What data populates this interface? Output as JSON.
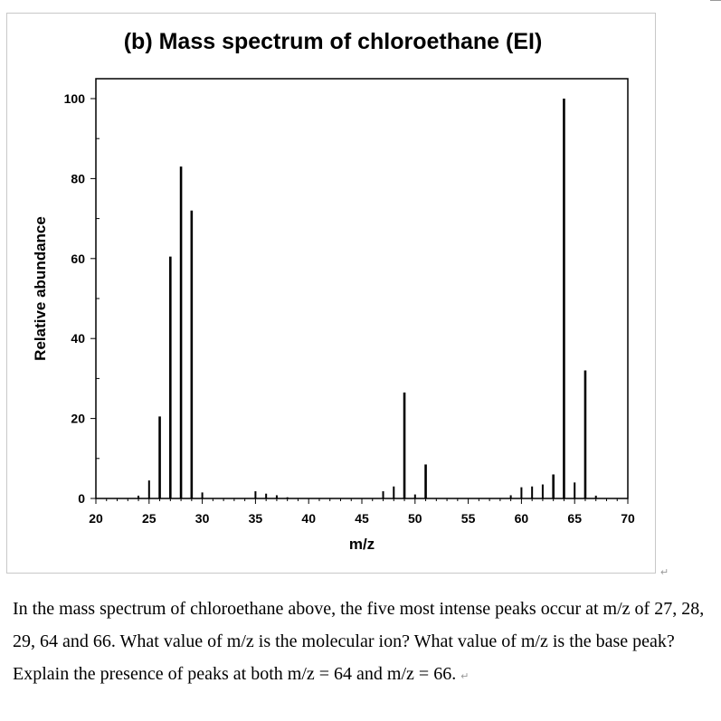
{
  "chart_data": {
    "type": "bar",
    "title": "(b) Mass spectrum of chloroethane (EI)",
    "xlabel": "m/z",
    "ylabel": "Relative abundance",
    "xlim": [
      20,
      70
    ],
    "ylim": [
      0,
      105
    ],
    "xticks": [
      20,
      25,
      30,
      35,
      40,
      45,
      50,
      55,
      60,
      65,
      70
    ],
    "yticks": [
      0,
      20,
      40,
      60,
      80,
      100
    ],
    "grid": false,
    "legend": "none",
    "peaks": [
      {
        "x": 24,
        "y": 0.7
      },
      {
        "x": 25,
        "y": 4.5
      },
      {
        "x": 26,
        "y": 20.5
      },
      {
        "x": 27,
        "y": 60.5
      },
      {
        "x": 28,
        "y": 83
      },
      {
        "x": 29,
        "y": 72
      },
      {
        "x": 30,
        "y": 1.5
      },
      {
        "x": 35,
        "y": 1.8
      },
      {
        "x": 36,
        "y": 1.2
      },
      {
        "x": 37,
        "y": 0.8
      },
      {
        "x": 38,
        "y": 0.3
      },
      {
        "x": 47,
        "y": 1.8
      },
      {
        "x": 48,
        "y": 3.0
      },
      {
        "x": 49,
        "y": 26.5
      },
      {
        "x": 50,
        "y": 1.0
      },
      {
        "x": 51,
        "y": 8.5
      },
      {
        "x": 59,
        "y": 0.8
      },
      {
        "x": 60,
        "y": 2.8
      },
      {
        "x": 61,
        "y": 3.0
      },
      {
        "x": 62,
        "y": 3.5
      },
      {
        "x": 63,
        "y": 6.0
      },
      {
        "x": 64,
        "y": 100
      },
      {
        "x": 65,
        "y": 4.0
      },
      {
        "x": 66,
        "y": 32
      },
      {
        "x": 67,
        "y": 0.7
      }
    ]
  },
  "question": {
    "text": "In the mass spectrum of chloroethane above, the five most intense peaks occur at m/z of 27, 28, 29, 64 and 66. What value of m/z is the molecular ion? What value of m/z is the base peak? Explain the presence of peaks at both m/z = 64 and m/z = 66."
  },
  "marks": {
    "return_mark": "↵"
  }
}
